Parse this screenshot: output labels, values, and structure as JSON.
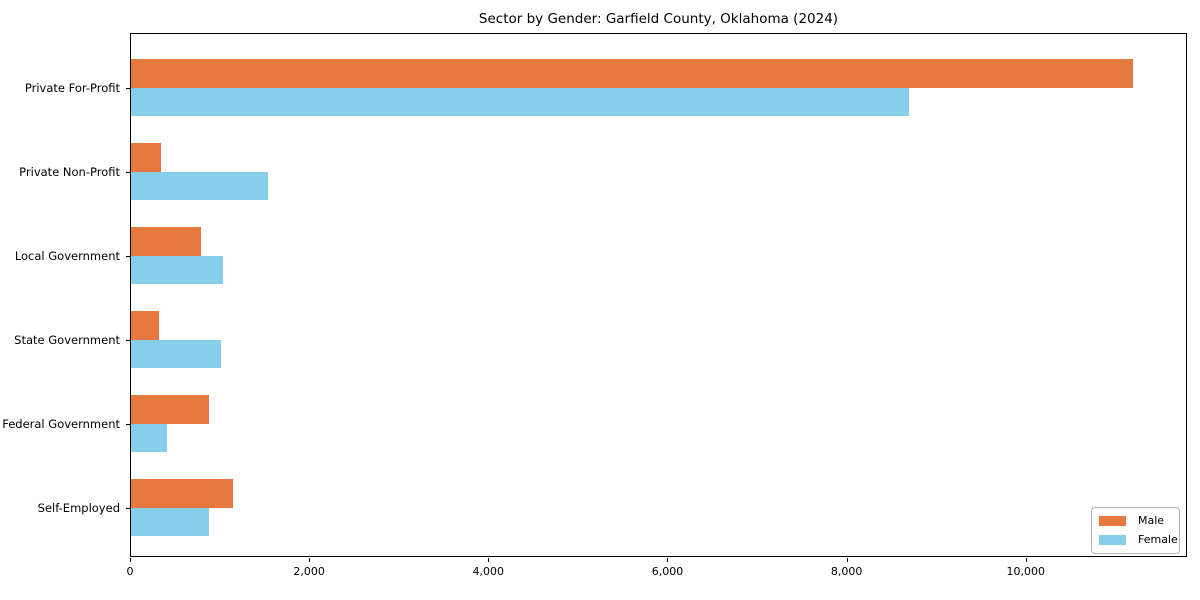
{
  "figure": {
    "background": "#ffffff",
    "axis_color": "#000000"
  },
  "chart_data": {
    "type": "bar",
    "orientation": "horizontal",
    "title": "Sector by Gender: Garfield County, Oklahoma (2024)",
    "xlabel": "",
    "ylabel": "",
    "categories": [
      "Private For-Profit",
      "Private Non-Profit",
      "Local Government",
      "State Government",
      "Federal Government",
      "Self-Employed"
    ],
    "series": [
      {
        "name": "Male",
        "color": "#E8793E",
        "values": [
          11200,
          350,
          790,
          320,
          880,
          1150
        ]
      },
      {
        "name": "Female",
        "color": "#87CEEB",
        "values": [
          8700,
          1540,
          1040,
          1020,
          410,
          880
        ]
      }
    ],
    "xlim": [
      0,
      11800
    ],
    "xticks": [
      0,
      2000,
      4000,
      6000,
      8000,
      10000
    ],
    "xtick_labels": [
      "0",
      "2,000",
      "4,000",
      "6,000",
      "8,000",
      "10,000"
    ],
    "grid": false,
    "legend": {
      "position": "lower right",
      "entries": [
        "Male",
        "Female"
      ]
    }
  }
}
